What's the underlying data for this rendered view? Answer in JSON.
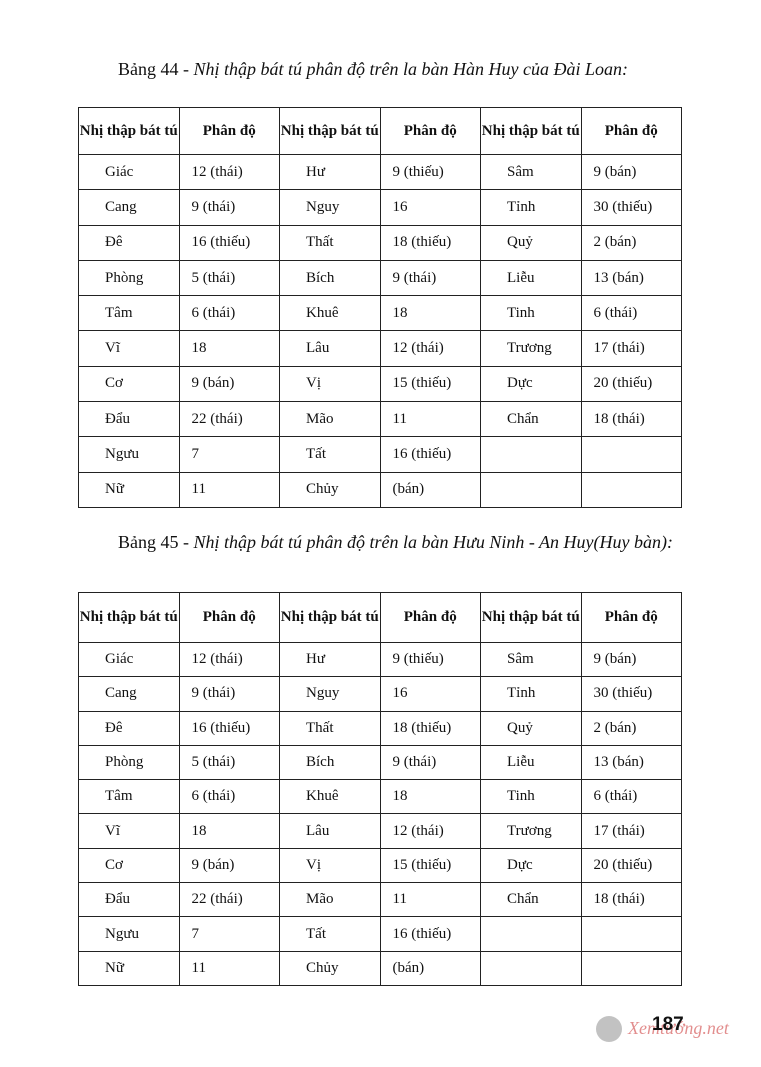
{
  "page": {
    "table44": {
      "caption": {
        "label": "Bảng 44 - ",
        "text": "Nhị thập bát tú phân độ trên la bàn Hàn Huy của Đài Loan:"
      },
      "header": [
        "Nhị thập bát tú",
        "Phân độ",
        "Nhị thập bát tú",
        "Phân độ",
        "Nhị thập bát tú",
        "Phân độ"
      ],
      "rows": [
        [
          "Giác",
          "12 (thái)",
          "Hư",
          "9 (thiếu)",
          "Sâm",
          "9 (bán)"
        ],
        [
          "Cang",
          "9 (thái)",
          "Nguy",
          "16",
          "Tỉnh",
          "30 (thiếu)"
        ],
        [
          "Đê",
          "16 (thiếu)",
          "Thất",
          "18 (thiếu)",
          "Quỷ",
          "2 (bán)"
        ],
        [
          "Phòng",
          "5 (thái)",
          "Bích",
          "9 (thái)",
          "Liễu",
          "13 (bán)"
        ],
        [
          "Tâm",
          "6 (thái)",
          "Khuê",
          "18",
          "Tinh",
          "6 (thái)"
        ],
        [
          "Vĩ",
          "18",
          "Lâu",
          "12 (thái)",
          "Trương",
          "17 (thái)"
        ],
        [
          "Cơ",
          "9 (bán)",
          "Vị",
          "15 (thiếu)",
          "Dực",
          "20 (thiếu)"
        ],
        [
          "Đẩu",
          "22 (thái)",
          "Mão",
          "11",
          "Chẩn",
          "18 (thái)"
        ],
        [
          "Ngưu",
          "7",
          "Tất",
          "16 (thiếu)",
          null,
          null
        ],
        [
          "Nữ",
          "11",
          "Chủy",
          "(bán)",
          null,
          null
        ]
      ]
    },
    "table45": {
      "caption": {
        "label": "Bảng 45 - ",
        "text": "Nhị thập bát tú phân độ trên la bàn Hưu Ninh - An Huy(Huy bàn):"
      },
      "header": [
        "Nhị thập bát tú",
        "Phân độ",
        "Nhị thập bát tú",
        "Phân độ",
        "Nhị thập bát tú",
        "Phân độ"
      ],
      "rows": [
        [
          "Giác",
          "12 (thái)",
          "Hư",
          "9 (thiếu)",
          "Sâm",
          "9 (bán)"
        ],
        [
          "Cang",
          "9 (thái)",
          "Nguy",
          "16",
          "Tỉnh",
          "30 (thiếu)"
        ],
        [
          "Đê",
          "16 (thiếu)",
          "Thất",
          "18 (thiếu)",
          "Quỷ",
          "2 (bán)"
        ],
        [
          "Phòng",
          "5 (thái)",
          "Bích",
          "9 (thái)",
          "Liễu",
          "13 (bán)"
        ],
        [
          "Tâm",
          "6 (thái)",
          "Khuê",
          "18",
          "Tinh",
          "6 (thái)"
        ],
        [
          "Vĩ",
          "18",
          "Lâu",
          "12 (thái)",
          "Trương",
          "17 (thái)"
        ],
        [
          "Cơ",
          "9 (bán)",
          "Vị",
          "15 (thiếu)",
          "Dực",
          "20 (thiếu)"
        ],
        [
          "Đẩu",
          "22 (thái)",
          "Mão",
          "11",
          "Chẩn",
          "18 (thái)"
        ],
        [
          "Ngưu",
          "7",
          "Tất",
          "16 (thiếu)",
          null,
          null
        ],
        [
          "Nữ",
          "11",
          "Chủy",
          "(bán)",
          null,
          null
        ]
      ]
    },
    "page_number": "187",
    "watermark": "Xemtướng.net"
  }
}
